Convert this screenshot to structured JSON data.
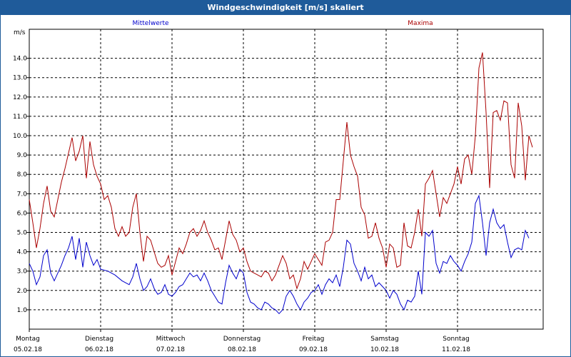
{
  "window": {
    "title": "Windgeschwindigkeit [m/s] skaliert"
  },
  "chart_data": {
    "type": "line",
    "title": "Windgeschwindigkeit [m/s] skaliert",
    "ylabel": "m/s",
    "xlabel": "",
    "ylim": [
      0,
      15.5
    ],
    "xlim": [
      0,
      7.2
    ],
    "yticks": [
      1,
      2,
      3,
      4,
      5,
      6,
      7,
      8,
      9,
      10,
      11,
      12,
      13,
      14
    ],
    "ytick_labels": [
      "1.0",
      "2.0",
      "3.0",
      "4.0",
      "5.0",
      "6.0",
      "7.0",
      "8.0",
      "9.0",
      "10.0",
      "11.0",
      "12.0",
      "13.0",
      "14.0"
    ],
    "xticks": [
      {
        "day": "Montag",
        "date": "05.02.18",
        "x": 0
      },
      {
        "day": "Dienstag",
        "date": "06.02.18",
        "x": 1
      },
      {
        "day": "Mittwoch",
        "date": "07.02.18",
        "x": 2
      },
      {
        "day": "Donnerstag",
        "date": "08.02.18",
        "x": 3
      },
      {
        "day": "Freitag",
        "date": "09.02.18",
        "x": 4
      },
      {
        "day": "Samstag",
        "date": "10.02.18",
        "x": 5
      },
      {
        "day": "Sonntag",
        "date": "11.02.18",
        "x": 6
      }
    ],
    "grid": true,
    "series": [
      {
        "name": "Mittelwerte",
        "color": "#0000cc",
        "points": [
          [
            0.0,
            3.4
          ],
          [
            0.05,
            3.0
          ],
          [
            0.1,
            2.3
          ],
          [
            0.15,
            2.7
          ],
          [
            0.2,
            3.8
          ],
          [
            0.25,
            4.1
          ],
          [
            0.3,
            2.9
          ],
          [
            0.35,
            2.5
          ],
          [
            0.4,
            2.9
          ],
          [
            0.45,
            3.3
          ],
          [
            0.5,
            3.8
          ],
          [
            0.55,
            4.2
          ],
          [
            0.6,
            4.8
          ],
          [
            0.65,
            3.6
          ],
          [
            0.7,
            4.7
          ],
          [
            0.75,
            3.2
          ],
          [
            0.8,
            4.5
          ],
          [
            0.85,
            3.8
          ],
          [
            0.9,
            3.3
          ],
          [
            0.95,
            3.6
          ],
          [
            1.0,
            3.1
          ],
          [
            1.1,
            3.0
          ],
          [
            1.2,
            2.8
          ],
          [
            1.3,
            2.5
          ],
          [
            1.4,
            2.3
          ],
          [
            1.45,
            2.7
          ],
          [
            1.5,
            3.4
          ],
          [
            1.55,
            2.6
          ],
          [
            1.6,
            2.0
          ],
          [
            1.65,
            2.2
          ],
          [
            1.7,
            2.6
          ],
          [
            1.75,
            2.1
          ],
          [
            1.8,
            1.8
          ],
          [
            1.85,
            1.9
          ],
          [
            1.9,
            2.3
          ],
          [
            1.95,
            1.8
          ],
          [
            2.0,
            1.7
          ],
          [
            2.05,
            1.9
          ],
          [
            2.1,
            2.2
          ],
          [
            2.15,
            2.3
          ],
          [
            2.2,
            2.6
          ],
          [
            2.25,
            2.9
          ],
          [
            2.3,
            2.7
          ],
          [
            2.35,
            2.8
          ],
          [
            2.4,
            2.5
          ],
          [
            2.45,
            2.9
          ],
          [
            2.5,
            2.5
          ],
          [
            2.55,
            2.0
          ],
          [
            2.6,
            1.7
          ],
          [
            2.65,
            1.4
          ],
          [
            2.7,
            1.3
          ],
          [
            2.75,
            2.4
          ],
          [
            2.8,
            3.3
          ],
          [
            2.85,
            2.9
          ],
          [
            2.9,
            2.6
          ],
          [
            2.95,
            3.1
          ],
          [
            3.0,
            2.9
          ],
          [
            3.05,
            1.9
          ],
          [
            3.1,
            1.4
          ],
          [
            3.15,
            1.3
          ],
          [
            3.2,
            1.1
          ],
          [
            3.25,
            1.0
          ],
          [
            3.3,
            1.4
          ],
          [
            3.35,
            1.3
          ],
          [
            3.4,
            1.1
          ],
          [
            3.45,
            1.0
          ],
          [
            3.5,
            0.8
          ],
          [
            3.55,
            1.0
          ],
          [
            3.6,
            1.7
          ],
          [
            3.65,
            2.0
          ],
          [
            3.7,
            1.7
          ],
          [
            3.75,
            1.3
          ],
          [
            3.8,
            1.0
          ],
          [
            3.85,
            1.4
          ],
          [
            3.9,
            1.6
          ],
          [
            3.95,
            1.9
          ],
          [
            4.0,
            2.0
          ],
          [
            4.05,
            2.3
          ],
          [
            4.1,
            1.8
          ],
          [
            4.15,
            2.3
          ],
          [
            4.2,
            2.6
          ],
          [
            4.25,
            2.4
          ],
          [
            4.3,
            2.8
          ],
          [
            4.35,
            2.2
          ],
          [
            4.4,
            3.2
          ],
          [
            4.45,
            4.6
          ],
          [
            4.5,
            4.4
          ],
          [
            4.55,
            3.4
          ],
          [
            4.6,
            3.0
          ],
          [
            4.65,
            2.5
          ],
          [
            4.7,
            3.2
          ],
          [
            4.75,
            2.6
          ],
          [
            4.8,
            2.8
          ],
          [
            4.85,
            2.2
          ],
          [
            4.9,
            2.4
          ],
          [
            4.95,
            2.2
          ],
          [
            5.0,
            2.0
          ],
          [
            5.05,
            1.6
          ],
          [
            5.1,
            2.0
          ],
          [
            5.15,
            1.8
          ],
          [
            5.2,
            1.3
          ],
          [
            5.25,
            1.0
          ],
          [
            5.3,
            1.5
          ],
          [
            5.35,
            1.4
          ],
          [
            5.4,
            1.7
          ],
          [
            5.45,
            3.0
          ],
          [
            5.5,
            1.8
          ],
          [
            5.55,
            5.0
          ],
          [
            5.6,
            4.8
          ],
          [
            5.65,
            5.1
          ],
          [
            5.7,
            3.4
          ],
          [
            5.75,
            2.9
          ],
          [
            5.8,
            3.5
          ],
          [
            5.85,
            3.4
          ],
          [
            5.9,
            3.8
          ],
          [
            5.95,
            3.5
          ],
          [
            6.0,
            3.3
          ],
          [
            6.05,
            3.0
          ],
          [
            6.1,
            3.5
          ],
          [
            6.15,
            3.9
          ],
          [
            6.2,
            4.5
          ],
          [
            6.25,
            6.5
          ],
          [
            6.3,
            6.9
          ],
          [
            6.35,
            5.5
          ],
          [
            6.4,
            3.8
          ],
          [
            6.45,
            5.5
          ],
          [
            6.5,
            6.2
          ],
          [
            6.55,
            5.5
          ],
          [
            6.6,
            5.2
          ],
          [
            6.65,
            5.4
          ],
          [
            6.7,
            4.5
          ],
          [
            6.75,
            3.7
          ],
          [
            6.8,
            4.1
          ],
          [
            6.85,
            4.2
          ],
          [
            6.9,
            4.1
          ],
          [
            6.95,
            5.1
          ],
          [
            7.0,
            4.7
          ]
        ]
      },
      {
        "name": "Maxima",
        "color": "#aa0000",
        "points": [
          [
            0.0,
            6.7
          ],
          [
            0.05,
            5.5
          ],
          [
            0.1,
            4.2
          ],
          [
            0.15,
            5.2
          ],
          [
            0.2,
            6.5
          ],
          [
            0.25,
            7.4
          ],
          [
            0.3,
            6.1
          ],
          [
            0.35,
            5.8
          ],
          [
            0.4,
            6.7
          ],
          [
            0.45,
            7.6
          ],
          [
            0.5,
            8.3
          ],
          [
            0.55,
            9.1
          ],
          [
            0.6,
            9.9
          ],
          [
            0.65,
            8.7
          ],
          [
            0.7,
            9.2
          ],
          [
            0.75,
            10.0
          ],
          [
            0.8,
            7.8
          ],
          [
            0.85,
            9.7
          ],
          [
            0.9,
            8.5
          ],
          [
            0.95,
            7.9
          ],
          [
            1.0,
            7.5
          ],
          [
            1.05,
            6.7
          ],
          [
            1.1,
            6.9
          ],
          [
            1.15,
            6.3
          ],
          [
            1.2,
            5.2
          ],
          [
            1.25,
            4.8
          ],
          [
            1.3,
            5.3
          ],
          [
            1.35,
            4.8
          ],
          [
            1.4,
            5.0
          ],
          [
            1.45,
            6.3
          ],
          [
            1.5,
            7.0
          ],
          [
            1.55,
            5.0
          ],
          [
            1.6,
            3.5
          ],
          [
            1.65,
            4.8
          ],
          [
            1.7,
            4.6
          ],
          [
            1.75,
            4.0
          ],
          [
            1.8,
            3.4
          ],
          [
            1.85,
            3.2
          ],
          [
            1.9,
            3.3
          ],
          [
            1.95,
            3.8
          ],
          [
            2.0,
            2.8
          ],
          [
            2.05,
            3.5
          ],
          [
            2.1,
            4.2
          ],
          [
            2.15,
            3.9
          ],
          [
            2.2,
            4.4
          ],
          [
            2.25,
            5.0
          ],
          [
            2.3,
            5.2
          ],
          [
            2.35,
            4.8
          ],
          [
            2.4,
            5.1
          ],
          [
            2.45,
            5.6
          ],
          [
            2.5,
            5.0
          ],
          [
            2.55,
            4.6
          ],
          [
            2.6,
            4.1
          ],
          [
            2.65,
            4.2
          ],
          [
            2.7,
            3.6
          ],
          [
            2.75,
            4.6
          ],
          [
            2.8,
            5.6
          ],
          [
            2.85,
            4.9
          ],
          [
            2.9,
            4.6
          ],
          [
            2.95,
            4.0
          ],
          [
            3.0,
            4.2
          ],
          [
            3.05,
            3.5
          ],
          [
            3.1,
            3.0
          ],
          [
            3.15,
            2.9
          ],
          [
            3.2,
            2.8
          ],
          [
            3.25,
            2.7
          ],
          [
            3.3,
            3.0
          ],
          [
            3.35,
            2.9
          ],
          [
            3.4,
            2.5
          ],
          [
            3.45,
            2.8
          ],
          [
            3.5,
            3.3
          ],
          [
            3.55,
            3.8
          ],
          [
            3.6,
            3.4
          ],
          [
            3.65,
            2.6
          ],
          [
            3.7,
            2.8
          ],
          [
            3.75,
            2.1
          ],
          [
            3.8,
            2.6
          ],
          [
            3.85,
            3.5
          ],
          [
            3.9,
            3.1
          ],
          [
            3.95,
            3.5
          ],
          [
            4.0,
            3.9
          ],
          [
            4.05,
            3.6
          ],
          [
            4.1,
            3.3
          ],
          [
            4.15,
            4.5
          ],
          [
            4.2,
            4.6
          ],
          [
            4.25,
            5.0
          ],
          [
            4.3,
            6.7
          ],
          [
            4.35,
            6.7
          ],
          [
            4.4,
            8.7
          ],
          [
            4.45,
            10.7
          ],
          [
            4.5,
            9.0
          ],
          [
            4.55,
            8.4
          ],
          [
            4.6,
            7.9
          ],
          [
            4.65,
            6.3
          ],
          [
            4.7,
            5.9
          ],
          [
            4.75,
            4.7
          ],
          [
            4.8,
            4.8
          ],
          [
            4.85,
            5.5
          ],
          [
            4.9,
            4.7
          ],
          [
            4.95,
            4.2
          ],
          [
            5.0,
            3.2
          ],
          [
            5.05,
            4.4
          ],
          [
            5.1,
            4.2
          ],
          [
            5.15,
            3.2
          ],
          [
            5.2,
            3.3
          ],
          [
            5.25,
            5.5
          ],
          [
            5.3,
            4.3
          ],
          [
            5.35,
            4.2
          ],
          [
            5.4,
            5.0
          ],
          [
            5.45,
            6.2
          ],
          [
            5.5,
            4.8
          ],
          [
            5.55,
            7.5
          ],
          [
            5.6,
            7.8
          ],
          [
            5.65,
            8.2
          ],
          [
            5.7,
            7.0
          ],
          [
            5.75,
            5.8
          ],
          [
            5.8,
            6.8
          ],
          [
            5.85,
            6.5
          ],
          [
            5.9,
            7.0
          ],
          [
            5.95,
            7.5
          ],
          [
            6.0,
            8.4
          ],
          [
            6.05,
            7.5
          ],
          [
            6.1,
            8.8
          ],
          [
            6.15,
            9.0
          ],
          [
            6.2,
            8.0
          ],
          [
            6.25,
            10.0
          ],
          [
            6.3,
            13.5
          ],
          [
            6.35,
            14.3
          ],
          [
            6.4,
            11.2
          ],
          [
            6.45,
            7.3
          ],
          [
            6.5,
            11.2
          ],
          [
            6.55,
            11.3
          ],
          [
            6.6,
            10.8
          ],
          [
            6.65,
            11.8
          ],
          [
            6.7,
            11.7
          ],
          [
            6.75,
            8.5
          ],
          [
            6.8,
            7.8
          ],
          [
            6.85,
            11.7
          ],
          [
            6.9,
            10.5
          ],
          [
            6.95,
            7.7
          ],
          [
            7.0,
            10.0
          ],
          [
            7.05,
            9.4
          ]
        ]
      }
    ]
  }
}
